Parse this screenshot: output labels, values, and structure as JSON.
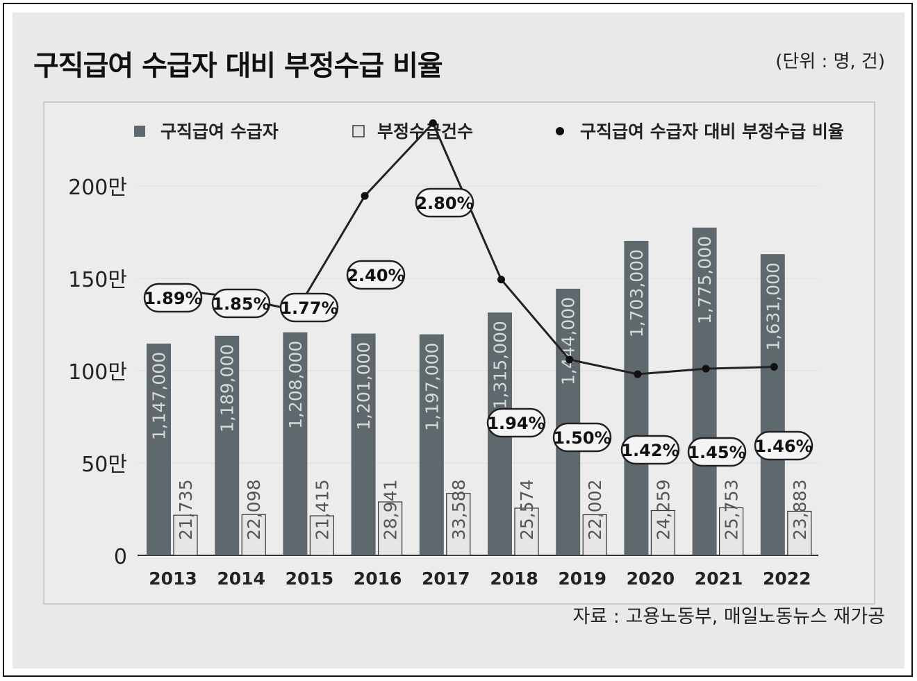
{
  "header": {
    "title": "구직급여 수급자 대비 부정수급 비율",
    "unit": "(단위 : 명, 건)"
  },
  "footer": {
    "source": "자료 : 고용노동부, 매일노동뉴스 재가공"
  },
  "colors": {
    "bar_recipients": "#5f686d",
    "bar_fraud": "#e6e6e6",
    "line": "#222222",
    "background": "#e9e9e9",
    "plot_bg": "#ececec"
  },
  "chart_data": {
    "type": "bar",
    "title": "구직급여 수급자 대비 부정수급 비율",
    "categories": [
      "2013",
      "2014",
      "2015",
      "2016",
      "2017",
      "2018",
      "2019",
      "2020",
      "2021",
      "2022"
    ],
    "series": [
      {
        "name": "구직급여 수급자",
        "kind": "bar",
        "values": [
          1147000,
          1189000,
          1208000,
          1201000,
          1197000,
          1315000,
          1444000,
          1703000,
          1775000,
          1631000
        ],
        "labels": [
          "1,147,000",
          "1,189,000",
          "1,208,000",
          "1,201,000",
          "1,197,000",
          "1,315,000",
          "1,444,000",
          "1,703,000",
          "1,775,000",
          "1,631,000"
        ]
      },
      {
        "name": "부정수급건수",
        "kind": "bar",
        "values": [
          21735,
          22098,
          21415,
          28941,
          33588,
          25574,
          22002,
          24259,
          25753,
          23883
        ],
        "labels": [
          "21,735",
          "22,098",
          "21,415",
          "28,941",
          "33,588",
          "25,574",
          "22,002",
          "24,259",
          "25,753",
          "23,883"
        ]
      },
      {
        "name": "구직급여 수급자 대비 부정수급 비율",
        "kind": "line",
        "values": [
          1.89,
          1.85,
          1.77,
          2.4,
          2.8,
          1.94,
          1.5,
          1.42,
          1.45,
          1.46
        ],
        "labels": [
          "1.89%",
          "1.85%",
          "1.77%",
          "2.40%",
          "2.80%",
          "1.94%",
          "1.50%",
          "1.42%",
          "1.45%",
          "1.46%"
        ]
      }
    ],
    "y_axis": {
      "ticks": [
        0,
        500000,
        1000000,
        1500000,
        2000000
      ],
      "tick_labels": [
        "0",
        "50만",
        "100만",
        "150만",
        "200만"
      ],
      "ylim": [
        0,
        2000000
      ]
    },
    "legend": {
      "position": "top",
      "items": [
        "구직급여 수급자",
        "부정수급건수",
        "구직급여 수급자 대비 부정수급 비율"
      ]
    }
  }
}
